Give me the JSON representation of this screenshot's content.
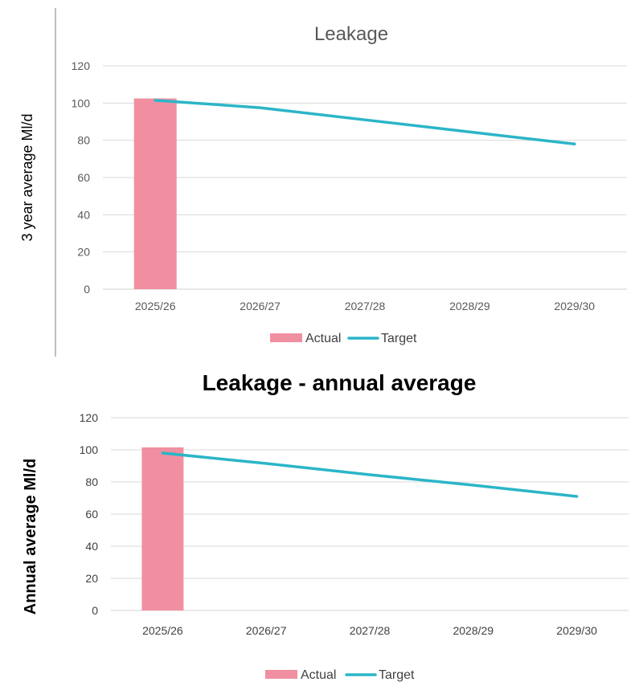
{
  "chart_data": [
    {
      "type": "bar",
      "title": "Leakage",
      "xlabel": "",
      "ylabel": "3 year average Ml/d",
      "categories": [
        "2025/26",
        "2026/27",
        "2027/28",
        "2028/29",
        "2029/30"
      ],
      "ylim": [
        0,
        120
      ],
      "yticks": [
        0,
        20,
        40,
        60,
        80,
        100,
        120
      ],
      "grid": true,
      "legend_position": "bottom",
      "series": [
        {
          "name": "Actual",
          "type": "bar",
          "color": "#f08fa0",
          "values": [
            102.5,
            null,
            null,
            null,
            null
          ]
        },
        {
          "name": "Target",
          "type": "line",
          "color": "#2bb5c8",
          "values": [
            101.5,
            97.5,
            91,
            84.5,
            78
          ]
        }
      ]
    },
    {
      "type": "bar",
      "title": "Leakage - annual average",
      "xlabel": "",
      "ylabel": "Annual average Ml/d",
      "categories": [
        "2025/26",
        "2026/27",
        "2027/28",
        "2028/29",
        "2029/30"
      ],
      "ylim": [
        0,
        120
      ],
      "yticks": [
        0,
        20,
        40,
        60,
        80,
        100,
        120
      ],
      "grid": true,
      "legend_position": "bottom",
      "series": [
        {
          "name": "Actual",
          "type": "bar",
          "color": "#f08fa0",
          "values": [
            101.5,
            null,
            null,
            null,
            null
          ]
        },
        {
          "name": "Target",
          "type": "line",
          "color": "#2bb5c8",
          "values": [
            98,
            91.5,
            84.5,
            78,
            71
          ]
        }
      ]
    }
  ]
}
